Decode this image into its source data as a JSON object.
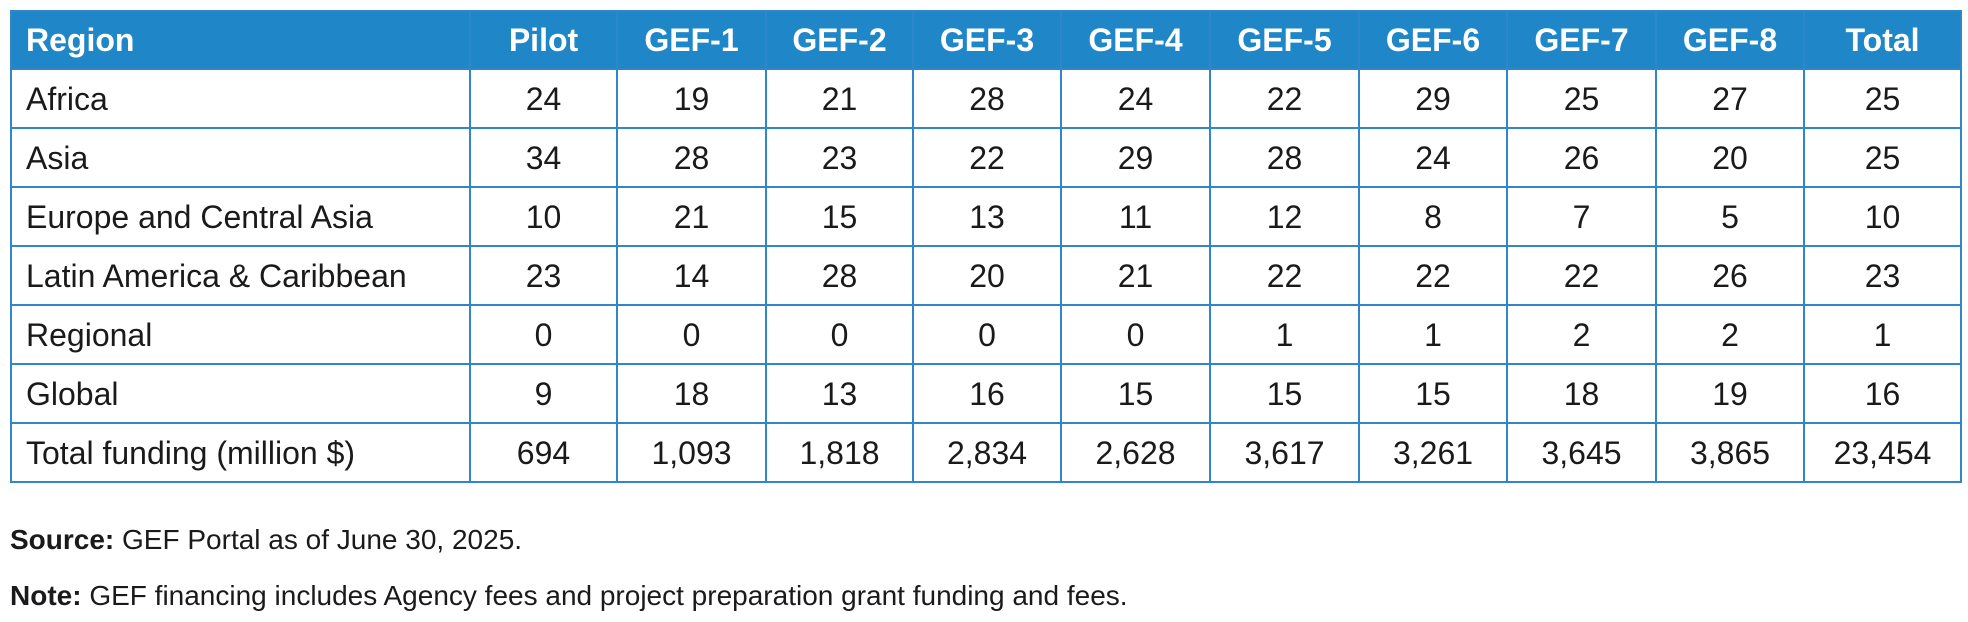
{
  "table": {
    "headers": [
      "Region",
      "Pilot",
      "GEF-1",
      "GEF-2",
      "GEF-3",
      "GEF-4",
      "GEF-5",
      "GEF-6",
      "GEF-7",
      "GEF-8",
      "Total"
    ],
    "rows": [
      [
        "Africa",
        "24",
        "19",
        "21",
        "28",
        "24",
        "22",
        "29",
        "25",
        "27",
        "25"
      ],
      [
        "Asia",
        "34",
        "28",
        "23",
        "22",
        "29",
        "28",
        "24",
        "26",
        "20",
        "25"
      ],
      [
        "Europe and Central Asia",
        "10",
        "21",
        "15",
        "13",
        "11",
        "12",
        "8",
        "7",
        "5",
        "10"
      ],
      [
        "Latin America & Caribbean",
        "23",
        "14",
        "28",
        "20",
        "21",
        "22",
        "22",
        "22",
        "26",
        "23"
      ],
      [
        "Regional",
        "0",
        "0",
        "0",
        "0",
        "0",
        "1",
        "1",
        "2",
        "2",
        "1"
      ],
      [
        "Global",
        "9",
        "18",
        "13",
        "16",
        "15",
        "15",
        "15",
        "18",
        "19",
        "16"
      ],
      [
        "Total funding (million $)",
        "694",
        "1,093",
        "1,818",
        "2,834",
        "2,628",
        "3,617",
        "3,261",
        "3,645",
        "3,865",
        "23,454"
      ]
    ]
  },
  "footnotes": {
    "source_label": "Source:",
    "source_text": "GEF Portal as of June 30, 2025.",
    "note_label": "Note:",
    "note_text": "GEF financing includes Agency fees and project preparation grant funding and fees."
  },
  "colors": {
    "header_bg": "#1f86c8",
    "header_text": "#ffffff",
    "border": "#2f86c8"
  }
}
